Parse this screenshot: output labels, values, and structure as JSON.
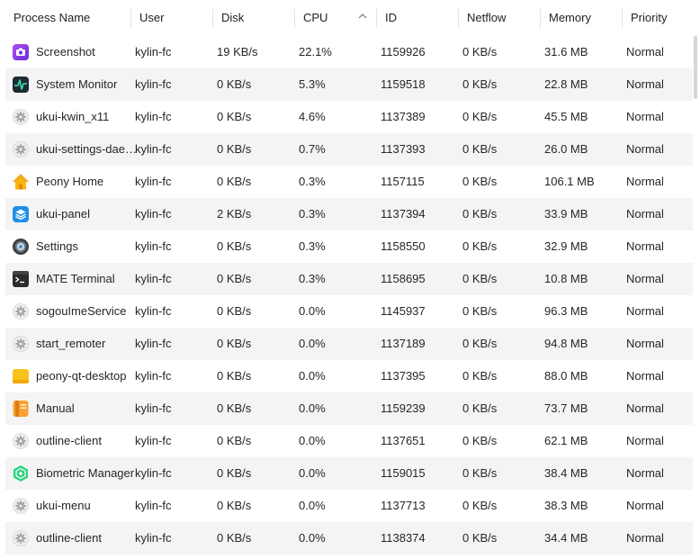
{
  "columns": {
    "name": "Process Name",
    "user": "User",
    "disk": "Disk",
    "cpu": "CPU",
    "id": "ID",
    "netflow": "Netflow",
    "memory": "Memory",
    "priority": "Priority"
  },
  "sort": {
    "column": "cpu",
    "order": "descending"
  },
  "processes": [
    {
      "icon": "screenshot-icon",
      "name": "Screenshot",
      "user": "kylin-fc",
      "disk": "19 KB/s",
      "cpu": "22.1%",
      "id": "1159926",
      "netflow": "0 KB/s",
      "memory": "31.6 MB",
      "priority": "Normal"
    },
    {
      "icon": "system-monitor-icon",
      "name": "System Monitor",
      "user": "kylin-fc",
      "disk": "0 KB/s",
      "cpu": "5.3%",
      "id": "1159518",
      "netflow": "0 KB/s",
      "memory": "22.8 MB",
      "priority": "Normal"
    },
    {
      "icon": "gear-icon",
      "name": "ukui-kwin_x11",
      "user": "kylin-fc",
      "disk": "0 KB/s",
      "cpu": "4.6%",
      "id": "1137389",
      "netflow": "0 KB/s",
      "memory": "45.5 MB",
      "priority": "Normal"
    },
    {
      "icon": "gear-icon",
      "name": "ukui-settings-daemon",
      "user": "kylin-fc",
      "disk": "0 KB/s",
      "cpu": "0.7%",
      "id": "1137393",
      "netflow": "0 KB/s",
      "memory": "26.0 MB",
      "priority": "Normal"
    },
    {
      "icon": "home-icon",
      "name": "Peony Home",
      "user": "kylin-fc",
      "disk": "0 KB/s",
      "cpu": "0.3%",
      "id": "1157115",
      "netflow": "0 KB/s",
      "memory": "106.1 MB",
      "priority": "Normal"
    },
    {
      "icon": "panel-icon",
      "name": "ukui-panel",
      "user": "kylin-fc",
      "disk": "2 KB/s",
      "cpu": "0.3%",
      "id": "1137394",
      "netflow": "0 KB/s",
      "memory": "33.9 MB",
      "priority": "Normal"
    },
    {
      "icon": "settings-app-icon",
      "name": "Settings",
      "user": "kylin-fc",
      "disk": "0 KB/s",
      "cpu": "0.3%",
      "id": "1158550",
      "netflow": "0 KB/s",
      "memory": "32.9 MB",
      "priority": "Normal"
    },
    {
      "icon": "terminal-icon",
      "name": "MATE Terminal",
      "user": "kylin-fc",
      "disk": "0 KB/s",
      "cpu": "0.3%",
      "id": "1158695",
      "netflow": "0 KB/s",
      "memory": "10.8 MB",
      "priority": "Normal"
    },
    {
      "icon": "gear-icon",
      "name": "sogouImeService",
      "user": "kylin-fc",
      "disk": "0 KB/s",
      "cpu": "0.0%",
      "id": "1145937",
      "netflow": "0 KB/s",
      "memory": "96.3 MB",
      "priority": "Normal"
    },
    {
      "icon": "gear-icon",
      "name": "start_remoter",
      "user": "kylin-fc",
      "disk": "0 KB/s",
      "cpu": "0.0%",
      "id": "1137189",
      "netflow": "0 KB/s",
      "memory": "94.8 MB",
      "priority": "Normal"
    },
    {
      "icon": "desktop-icon",
      "name": "peony-qt-desktop",
      "user": "kylin-fc",
      "disk": "0 KB/s",
      "cpu": "0.0%",
      "id": "1137395",
      "netflow": "0 KB/s",
      "memory": "88.0 MB",
      "priority": "Normal"
    },
    {
      "icon": "manual-icon",
      "name": "Manual",
      "user": "kylin-fc",
      "disk": "0 KB/s",
      "cpu": "0.0%",
      "id": "1159239",
      "netflow": "0 KB/s",
      "memory": "73.7 MB",
      "priority": "Normal"
    },
    {
      "icon": "gear-icon",
      "name": "outline-client",
      "user": "kylin-fc",
      "disk": "0 KB/s",
      "cpu": "0.0%",
      "id": "1137651",
      "netflow": "0 KB/s",
      "memory": "62.1 MB",
      "priority": "Normal"
    },
    {
      "icon": "biometric-icon",
      "name": "Biometric Manager",
      "user": "kylin-fc",
      "disk": "0 KB/s",
      "cpu": "0.0%",
      "id": "1159015",
      "netflow": "0 KB/s",
      "memory": "38.4 MB",
      "priority": "Normal"
    },
    {
      "icon": "gear-icon",
      "name": "ukui-menu",
      "user": "kylin-fc",
      "disk": "0 KB/s",
      "cpu": "0.0%",
      "id": "1137713",
      "netflow": "0 KB/s",
      "memory": "38.3 MB",
      "priority": "Normal"
    },
    {
      "icon": "gear-icon",
      "name": "outline-client",
      "user": "kylin-fc",
      "disk": "0 KB/s",
      "cpu": "0.0%",
      "id": "1138374",
      "netflow": "0 KB/s",
      "memory": "34.4 MB",
      "priority": "Normal"
    }
  ]
}
